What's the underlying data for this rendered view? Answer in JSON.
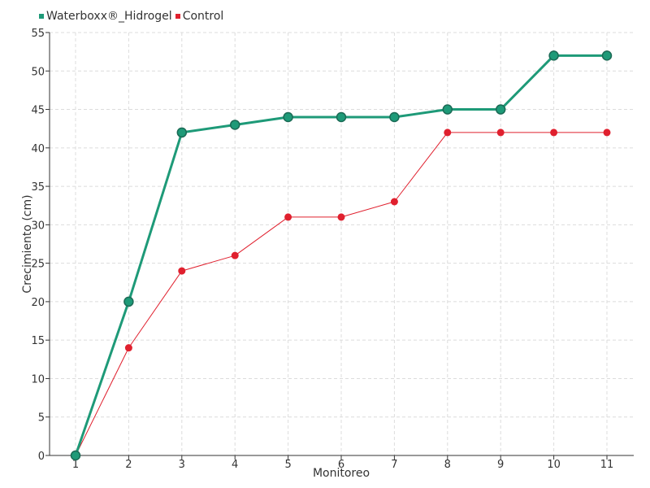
{
  "chart_data": {
    "type": "line",
    "xlabel": "Monitoreo",
    "ylabel": "Crecimiento (cm)",
    "categories": [
      "1",
      "2",
      "3",
      "4",
      "5",
      "6",
      "7",
      "8",
      "9",
      "10",
      "11"
    ],
    "ylim": [
      0,
      55
    ],
    "yticks": [
      "0",
      "5",
      "10",
      "15",
      "20",
      "25",
      "30",
      "35",
      "40",
      "45",
      "50",
      "55"
    ],
    "grid": true,
    "legend_position": "top-left",
    "series": [
      {
        "name": "Waterboxx®_Hidrogel",
        "color": "#1e9a78",
        "values": [
          0,
          20,
          42,
          43,
          44,
          44,
          44,
          45,
          45,
          52,
          52
        ]
      },
      {
        "name": "Control",
        "color": "#e0202e",
        "values": [
          0,
          14,
          24,
          26,
          31,
          31,
          33,
          42,
          42,
          42,
          42
        ]
      }
    ]
  }
}
